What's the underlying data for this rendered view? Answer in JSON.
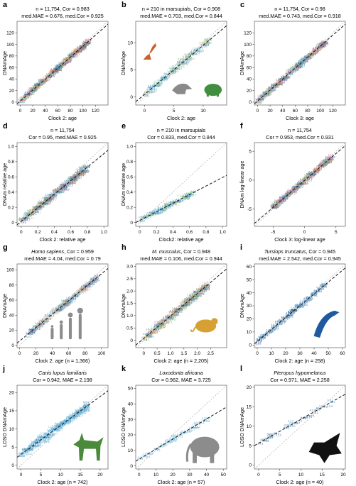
{
  "figure": {
    "colors": {
      "point_main": "#2f8fbf",
      "point_dark": "#1f3f77",
      "point_light": "#6fb6d9",
      "point_tan": "#c9b27a",
      "point_pink": "#e8a0a0",
      "point_green": "#4aa04a",
      "point_orange": "#d98a3a",
      "point_purple": "#8a5aa0",
      "point_red": "#d04040",
      "regression": "#111111",
      "identity": "#b8b8b8",
      "kangaroo": "#c8602a",
      "opossum": "#8a8a8a",
      "wombat": "#3f8f3f",
      "human": "#8c8c8c",
      "mouse": "#d6a033",
      "dolphin": "#1f5aa0",
      "dog": "#4a8a3a",
      "elephant": "#8c8c8c",
      "bat": "#111111"
    }
  },
  "chart_data": [
    {
      "panel": "a",
      "type": "scatter",
      "title_line1": "n = 11,754, Cor = 0.983",
      "title_line2": "med.MAE = 0.676, med.Cor = 0.925",
      "title_italic": false,
      "xlabel": "Clock 2: age",
      "ylabel": "DNAmAge",
      "xlim": [
        -5,
        140
      ],
      "ylim": [
        -5,
        140
      ],
      "xticks": [
        0,
        20,
        40,
        60,
        80,
        100,
        120
      ],
      "yticks": [
        0,
        20,
        40,
        60,
        80,
        100,
        120
      ],
      "regression": [
        [
          -5,
          -3
        ],
        [
          140,
          135
        ]
      ],
      "identity": [
        [
          -5,
          -5
        ],
        [
          140,
          140
        ]
      ],
      "cloud": {
        "n": 380,
        "x_max": 110,
        "slope": 0.98,
        "spread": 7,
        "palette": "mixed"
      },
      "silhouettes": []
    },
    {
      "panel": "b",
      "type": "scatter",
      "title_line1": "n = 210 in marsupials, Cor = 0.908",
      "title_line2": "med.MAE = 0.703, med.Cor = 0.844",
      "title_italic": false,
      "xlabel": "Clock 2: age",
      "ylabel": "DNAmAge",
      "xlim": [
        -1.5,
        14
      ],
      "ylim": [
        -1.5,
        14
      ],
      "xticks": [
        0,
        5,
        10
      ],
      "yticks": [
        0,
        5,
        10
      ],
      "regression": [
        [
          -1.5,
          -0.9
        ],
        [
          14,
          13.2
        ]
      ],
      "identity": [
        [
          -1.5,
          -1.5
        ],
        [
          14,
          14
        ]
      ],
      "cloud": {
        "n": 150,
        "x_max": 11,
        "slope": 0.95,
        "spread": 1.1,
        "palette": "marsupial"
      },
      "silhouettes": [
        "kangaroo",
        "opossum",
        "wombat"
      ]
    },
    {
      "panel": "c",
      "type": "scatter",
      "title_line1": "n = 11,754, Cor = 0.98",
      "title_line2": "med.MAE = 0.743, med.Cor = 0.918",
      "title_italic": false,
      "xlabel": "Clock 3: age",
      "ylabel": "DNAmAge",
      "xlim": [
        -5,
        140
      ],
      "ylim": [
        -5,
        140
      ],
      "xticks": [
        0,
        20,
        40,
        60,
        80,
        100,
        120
      ],
      "yticks": [
        0,
        20,
        40,
        60,
        80,
        100,
        120
      ],
      "regression": [
        [
          -5,
          -3
        ],
        [
          140,
          135
        ]
      ],
      "identity": [
        [
          -5,
          -5
        ],
        [
          140,
          140
        ]
      ],
      "cloud": {
        "n": 380,
        "x_max": 110,
        "slope": 0.97,
        "spread": 7.5,
        "palette": "mixed"
      },
      "silhouettes": []
    },
    {
      "panel": "d",
      "type": "scatter",
      "title_line1": "n = 11,754",
      "title_line2": "Cor = 0.95, med.MAE = 0.925",
      "title_italic": false,
      "xlabel": "Clock 2: relative age",
      "ylabel": "DNAm relative age",
      "xlim": [
        -0.05,
        1.05
      ],
      "ylim": [
        -0.05,
        1.05
      ],
      "xticks": [
        0,
        0.2,
        0.4,
        0.6,
        0.8,
        1.0
      ],
      "yticks": [
        0,
        0.2,
        0.4,
        0.6,
        0.8,
        1.0
      ],
      "xtick_labels": [
        "0",
        "0.2",
        "0.4",
        "0.6",
        "0.8",
        "1.0"
      ],
      "ytick_labels": [
        "0",
        "0.2",
        "0.4",
        "0.6",
        "0.8",
        "1.0"
      ],
      "regression": [
        [
          -0.05,
          -0.03
        ],
        [
          1.05,
          0.95
        ]
      ],
      "identity": [
        [
          -0.05,
          -0.05
        ],
        [
          1.05,
          1.05
        ]
      ],
      "cloud": {
        "n": 380,
        "x_max": 0.8,
        "slope": 0.95,
        "spread": 0.08,
        "palette": "mixed"
      },
      "silhouettes": []
    },
    {
      "panel": "e",
      "type": "scatter",
      "title_line1": "n = 210 in marsupials",
      "title_line2": "Cor = 0.833, med.Cor = 0.844",
      "title_italic": false,
      "xlabel": "Clock2: relative age",
      "ylabel": "DNAm relative age",
      "xlim": [
        -0.05,
        1.05
      ],
      "ylim": [
        -0.05,
        1.05
      ],
      "xticks": [
        0,
        0.2,
        0.4,
        0.6,
        0.8,
        1.0
      ],
      "yticks": [
        0,
        0.2,
        0.4,
        0.6,
        0.8,
        1.0
      ],
      "xtick_labels": [
        "0",
        "0.2",
        "0.4",
        "0.6",
        "0.8",
        "1.0"
      ],
      "ytick_labels": [
        "0",
        "0.2",
        "0.4",
        "0.6",
        "0.8",
        "1.0"
      ],
      "regression": [
        [
          -0.05,
          0.0
        ],
        [
          1.05,
          0.62
        ]
      ],
      "identity": [
        [
          -0.05,
          -0.05
        ],
        [
          1.05,
          1.05
        ]
      ],
      "cloud": {
        "n": 130,
        "x_max": 0.65,
        "slope": 0.6,
        "spread": 0.06,
        "palette": "marsupial"
      },
      "silhouettes": []
    },
    {
      "panel": "f",
      "type": "scatter",
      "title_line1": "n = 11,754",
      "title_line2": "Cor = 0.953, med.Cor = 0.931",
      "title_italic": false,
      "xlabel": "Clock 3: log-linear age",
      "ylabel": "DNAm log-linear age",
      "xlim": [
        -8,
        6.5
      ],
      "ylim": [
        -8,
        6.5
      ],
      "xticks": [
        -5,
        0,
        5
      ],
      "yticks": [
        -5,
        0,
        5
      ],
      "regression": [
        [
          -8,
          -7.5
        ],
        [
          6.5,
          6.0
        ]
      ],
      "identity": [
        [
          -8,
          -8
        ],
        [
          6.5,
          6.5
        ]
      ],
      "cloud": {
        "n": 330,
        "x_min": -5,
        "x_max": 4.5,
        "slope": 0.95,
        "spread": 0.7,
        "palette": "mixed"
      },
      "silhouettes": []
    },
    {
      "panel": "g",
      "type": "scatter",
      "title_line1": "Homo sapiens, Cor = 0.959",
      "title_line2": "med.MAE = 4.04, med.Cor = 0.79",
      "title_italic": true,
      "xlabel": "Clock 2: age (n = 1,366)",
      "ylabel": "DNAmAge",
      "xlim": [
        -3,
        108
      ],
      "ylim": [
        -3,
        108
      ],
      "xticks": [
        0,
        20,
        40,
        60,
        80,
        100
      ],
      "yticks": [
        0,
        20,
        40,
        60,
        80,
        100
      ],
      "regression": [
        [
          -3,
          3
        ],
        [
          108,
          102
        ]
      ],
      "identity": [
        [
          -3,
          -3
        ],
        [
          108,
          108
        ]
      ],
      "cloud": {
        "n": 300,
        "x_min": 10,
        "x_max": 95,
        "slope": 0.95,
        "spread": 6,
        "palette": "human"
      },
      "silhouettes": [
        "human"
      ]
    },
    {
      "panel": "h",
      "type": "scatter",
      "title_line1": "M. musculus, Cor = 0.948",
      "title_line2": "med.MAE = 0.106, med.Cor = 0.944",
      "title_italic": true,
      "xlabel": "Clock 2: age (n = 2,205)",
      "ylabel": "DNAmAge",
      "xlim": [
        -0.3,
        3.1
      ],
      "ylim": [
        -0.3,
        3.1
      ],
      "xticks": [
        0,
        0.5,
        1.0,
        1.5,
        2.0,
        2.5
      ],
      "yticks": [
        0,
        0.5,
        1.0,
        1.5,
        2.0,
        2.5,
        3.0
      ],
      "xtick_labels": [
        "0",
        "0.5",
        "1.0",
        "1.5",
        "2.0",
        "2.5"
      ],
      "ytick_labels": [
        "0",
        "0.5",
        "1.0",
        "1.5",
        "2.0",
        "2.5",
        "3.0"
      ],
      "regression": [
        [
          -0.3,
          -0.2
        ],
        [
          3.1,
          2.9
        ]
      ],
      "identity": [
        [
          -0.3,
          -0.3
        ],
        [
          3.1,
          3.1
        ]
      ],
      "cloud": {
        "n": 320,
        "x_max": 2.4,
        "slope": 0.97,
        "spread": 0.25,
        "palette": "mouse"
      },
      "silhouettes": [
        "mouse"
      ]
    },
    {
      "panel": "i",
      "type": "scatter",
      "title_line1": "Tursiops truncatus, Cor = 0.945",
      "title_line2": "med.MAE = 2.542, med.Cor = 0.945",
      "title_italic": true,
      "xlabel": "Clock 2: age (n = 258)",
      "ylabel": "DNAmAge",
      "xlim": [
        -2,
        62
      ],
      "ylim": [
        -2,
        62
      ],
      "xticks": [
        0,
        10,
        20,
        30,
        40,
        50,
        60
      ],
      "yticks": [
        0,
        10,
        20,
        30,
        40,
        50,
        60
      ],
      "regression": [
        [
          -2,
          1
        ],
        [
          62,
          59
        ]
      ],
      "identity": [
        [
          -2,
          -2
        ],
        [
          62,
          62
        ]
      ],
      "cloud": {
        "n": 140,
        "x_max": 48,
        "slope": 0.95,
        "spread": 3,
        "palette": "dolphin"
      },
      "silhouettes": [
        "dolphin"
      ]
    },
    {
      "panel": "j",
      "type": "scatter",
      "title_line1": "Canis lupus familiaris",
      "title_line2": "Cor = 0.942, MAE = 2.198",
      "title_italic_line1": true,
      "xlabel": "Clock 2: age (n = 742)",
      "ylabel": "LOSO DNAmAge",
      "xlim": [
        -1,
        22
      ],
      "ylim": [
        -1,
        22
      ],
      "xticks": [
        0,
        5,
        10,
        15,
        20
      ],
      "yticks": [
        0,
        5,
        10,
        15,
        20
      ],
      "regression": [
        [
          -1,
          2.2
        ],
        [
          22,
          20.5
        ]
      ],
      "identity": [
        [
          -1,
          -1
        ],
        [
          22,
          22
        ]
      ],
      "cloud": {
        "n": 260,
        "x_max": 17,
        "slope": 0.85,
        "spread": 1.8,
        "palette": "dog"
      },
      "silhouettes": [
        "dog"
      ]
    },
    {
      "panel": "k",
      "type": "scatter",
      "title_line1": "Loxodonta africana",
      "title_line2": "Cor = 0.962, MAE = 3.725",
      "title_italic_line1": true,
      "xlabel": "Clock 2: age (n = 57)",
      "ylabel": "LOSO DNAmAge",
      "xlim": [
        -2,
        52
      ],
      "ylim": [
        -2,
        52
      ],
      "xticks": [
        0,
        10,
        20,
        30,
        40,
        50
      ],
      "yticks": [
        0,
        10,
        20,
        30,
        40,
        50
      ],
      "regression": [
        [
          -2,
          3
        ],
        [
          52,
          38
        ]
      ],
      "identity": [
        [
          -2,
          -2
        ],
        [
          52,
          52
        ]
      ],
      "cloud": {
        "n": 57,
        "x_max": 42,
        "slope": 0.68,
        "spread": 2.5,
        "palette": "elephant"
      },
      "silhouettes": [
        "elephant"
      ]
    },
    {
      "panel": "l",
      "type": "scatter",
      "title_line1": "Pteropus hypomelanus",
      "title_line2": "Cor = 0.971, MAE = 2.258",
      "title_italic_line1": true,
      "xlabel": "Clock 2: age (n = 40)",
      "ylabel": "LOSO DNAmAge",
      "xlim": [
        -1,
        20.5
      ],
      "ylim": [
        -1,
        20.5
      ],
      "xticks": [
        0,
        5,
        10,
        15,
        20
      ],
      "yticks": [
        0,
        5,
        10,
        15,
        20
      ],
      "regression": [
        [
          -1,
          5
        ],
        [
          20.5,
          18.2
        ]
      ],
      "identity": [
        [
          -1,
          -1
        ],
        [
          20.5,
          20.5
        ]
      ],
      "cloud": {
        "n": 40,
        "x_max": 18,
        "slope": 0.65,
        "spread": 1.2,
        "palette": "bat"
      },
      "silhouettes": [
        "bat"
      ]
    }
  ]
}
